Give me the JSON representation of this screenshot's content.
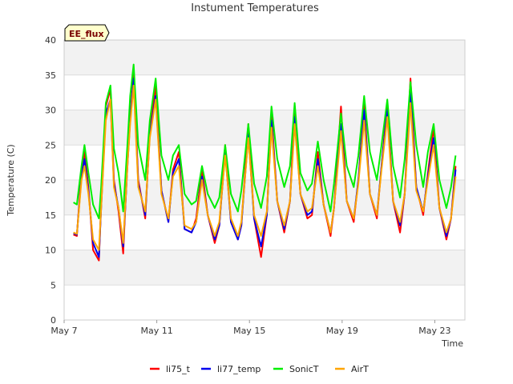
{
  "chart_data": {
    "type": "line",
    "title": "Instument Temperatures",
    "xlabel": "Time",
    "ylabel": "Temperature (C)",
    "badge": "EE_flux",
    "xlim": [
      7.0,
      24.3
    ],
    "ylim": [
      0,
      40
    ],
    "yticks": [
      0,
      5,
      10,
      15,
      20,
      25,
      30,
      35,
      40
    ],
    "xticks": [
      {
        "value": 7,
        "label": "May 7"
      },
      {
        "value": 11,
        "label": "May 11"
      },
      {
        "value": 15,
        "label": "May 15"
      },
      {
        "value": 19,
        "label": "May 19"
      },
      {
        "value": 23,
        "label": "May 23"
      }
    ],
    "grid": true,
    "legend_position": "bottom",
    "x": [
      7.4,
      7.55,
      7.75,
      7.88,
      8.05,
      8.25,
      8.5,
      8.6,
      8.8,
      9.0,
      9.15,
      9.35,
      9.55,
      9.75,
      9.85,
      10.0,
      10.2,
      10.5,
      10.7,
      10.95,
      11.2,
      11.5,
      11.7,
      11.95,
      12.2,
      12.5,
      12.7,
      12.95,
      13.2,
      13.5,
      13.7,
      13.95,
      14.2,
      14.5,
      14.65,
      14.95,
      15.2,
      15.5,
      15.75,
      15.95,
      16.2,
      16.5,
      16.75,
      16.95,
      17.2,
      17.5,
      17.7,
      17.95,
      18.2,
      18.5,
      18.65,
      18.95,
      19.2,
      19.5,
      19.7,
      19.95,
      20.2,
      20.5,
      20.7,
      20.95,
      21.2,
      21.5,
      21.7,
      21.95,
      22.2,
      22.5,
      22.7,
      22.95,
      23.2,
      23.5,
      23.7,
      23.9
    ],
    "series": [
      {
        "name": "li75_t",
        "color": "#ff0000",
        "values": [
          12.2,
          12.0,
          21.5,
          24.0,
          19.0,
          10.0,
          8.5,
          16.5,
          30.5,
          33.0,
          20.0,
          15.5,
          9.5,
          24.0,
          29.0,
          35.0,
          20.0,
          14.5,
          27.0,
          33.5,
          18.5,
          14.0,
          21.5,
          24.0,
          13.0,
          12.5,
          14.5,
          21.5,
          15.0,
          11.0,
          13.5,
          25.0,
          14.0,
          11.5,
          13.5,
          28.0,
          14.5,
          9.0,
          15.0,
          29.5,
          17.0,
          12.5,
          17.0,
          30.5,
          18.0,
          14.5,
          15.0,
          24.0,
          16.5,
          12.0,
          16.0,
          30.5,
          17.0,
          14.0,
          20.0,
          31.0,
          18.0,
          14.5,
          22.0,
          31.0,
          17.0,
          12.5,
          18.0,
          34.5,
          19.0,
          15.0,
          21.0,
          27.5,
          16.0,
          11.5,
          14.5,
          22.0
        ]
      },
      {
        "name": "li77_temp",
        "color": "#0000ee",
        "values": [
          12.4,
          12.2,
          20.5,
          23.0,
          18.5,
          11.0,
          9.0,
          16.0,
          29.5,
          31.5,
          19.5,
          16.0,
          10.5,
          23.0,
          28.5,
          34.5,
          19.5,
          15.0,
          26.5,
          32.0,
          18.5,
          14.0,
          21.0,
          23.0,
          13.0,
          12.5,
          14.0,
          20.5,
          15.0,
          11.5,
          13.5,
          24.0,
          14.0,
          11.5,
          13.5,
          26.5,
          14.5,
          10.5,
          15.0,
          28.5,
          17.0,
          13.0,
          17.0,
          29.0,
          18.0,
          15.0,
          15.5,
          23.0,
          16.5,
          12.5,
          16.0,
          28.0,
          17.0,
          14.5,
          20.0,
          30.0,
          18.0,
          15.0,
          22.0,
          30.0,
          17.0,
          13.5,
          18.0,
          32.5,
          19.0,
          15.5,
          20.5,
          26.0,
          16.0,
          12.0,
          14.5,
          21.5
        ]
      },
      {
        "name": "SonicT",
        "color": "#00ee00",
        "values": [
          16.8,
          16.5,
          22.0,
          25.0,
          21.0,
          16.5,
          14.5,
          19.0,
          31.0,
          33.5,
          24.5,
          21.0,
          15.5,
          26.0,
          32.0,
          36.5,
          25.0,
          20.0,
          28.5,
          34.5,
          23.5,
          20.0,
          23.5,
          25.0,
          18.0,
          16.5,
          17.0,
          22.0,
          18.0,
          16.0,
          17.5,
          25.0,
          18.0,
          15.5,
          18.5,
          28.0,
          19.5,
          16.0,
          20.5,
          30.5,
          23.0,
          19.0,
          22.0,
          31.0,
          21.0,
          18.5,
          19.5,
          25.5,
          20.0,
          15.5,
          19.5,
          29.5,
          22.0,
          19.0,
          23.5,
          32.0,
          24.0,
          20.0,
          25.0,
          31.5,
          22.0,
          17.5,
          23.0,
          34.0,
          25.0,
          19.0,
          24.0,
          28.0,
          20.0,
          16.0,
          19.0,
          23.5
        ]
      },
      {
        "name": "AirT",
        "color": "#ffa500",
        "values": [
          12.5,
          12.3,
          20.0,
          22.0,
          18.0,
          11.5,
          10.0,
          16.0,
          28.5,
          31.5,
          19.0,
          16.0,
          11.0,
          23.0,
          28.0,
          33.5,
          19.0,
          15.5,
          26.0,
          31.5,
          18.0,
          14.5,
          20.5,
          22.0,
          13.5,
          13.0,
          14.0,
          20.0,
          15.0,
          12.0,
          14.0,
          23.5,
          14.5,
          12.0,
          14.0,
          26.0,
          15.0,
          12.0,
          15.5,
          27.5,
          17.0,
          13.5,
          17.0,
          28.0,
          18.0,
          15.5,
          16.0,
          22.0,
          16.5,
          12.5,
          16.0,
          27.0,
          17.0,
          14.5,
          19.5,
          28.5,
          18.0,
          15.0,
          21.5,
          29.0,
          17.0,
          14.0,
          18.0,
          31.0,
          18.5,
          15.5,
          20.0,
          25.0,
          16.0,
          12.5,
          14.5,
          20.5
        ]
      }
    ]
  }
}
